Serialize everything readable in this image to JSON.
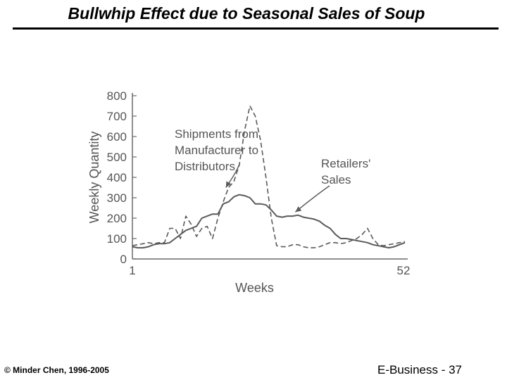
{
  "slide": {
    "title": "Bullwhip Effect due to Seasonal Sales of Soup",
    "footer_left": "© Minder Chen, 1996-2005",
    "footer_right": "E-Business - 37"
  },
  "chart_data": {
    "type": "line",
    "xlabel": "Weeks",
    "ylabel": "Weekly Quantity",
    "ylim": [
      0,
      800
    ],
    "yticks": [
      0,
      100,
      200,
      300,
      400,
      500,
      600,
      700,
      800
    ],
    "xlim": [
      1,
      52
    ],
    "xtick_labels": [
      "1",
      "52"
    ],
    "grid": false,
    "colors": {
      "line": "#5a5a5a",
      "axis": "#6a6a6a",
      "text": "#555555"
    },
    "x": [
      1,
      2,
      3,
      4,
      5,
      6,
      7,
      8,
      9,
      10,
      11,
      12,
      13,
      14,
      15,
      16,
      17,
      18,
      19,
      20,
      21,
      22,
      23,
      24,
      25,
      26,
      27,
      28,
      29,
      30,
      31,
      32,
      33,
      34,
      35,
      36,
      37,
      38,
      39,
      40,
      41,
      42,
      43,
      44,
      45,
      46,
      47,
      48,
      49,
      50,
      51,
      52
    ],
    "series": [
      {
        "name": "Shipments from Manufacturer to Distributors",
        "style": "dashed",
        "values": [
          65,
          70,
          75,
          80,
          75,
          80,
          80,
          150,
          150,
          100,
          210,
          170,
          110,
          150,
          160,
          100,
          200,
          280,
          350,
          380,
          460,
          630,
          750,
          700,
          580,
          400,
          200,
          65,
          60,
          60,
          70,
          70,
          60,
          55,
          55,
          60,
          70,
          80,
          80,
          75,
          80,
          90,
          100,
          120,
          150,
          100,
          70,
          65,
          70,
          75,
          80,
          85
        ]
      },
      {
        "name": "Retailers' Sales",
        "style": "solid",
        "values": [
          60,
          55,
          55,
          60,
          70,
          75,
          75,
          80,
          100,
          120,
          140,
          150,
          160,
          200,
          210,
          220,
          220,
          270,
          280,
          305,
          315,
          310,
          300,
          270,
          270,
          265,
          240,
          210,
          205,
          210,
          210,
          215,
          205,
          200,
          195,
          185,
          165,
          150,
          120,
          100,
          100,
          95,
          90,
          85,
          80,
          70,
          65,
          60,
          55,
          60,
          70,
          80
        ]
      }
    ],
    "annotations": [
      {
        "text": "Shipments from Manufacturer to Distributors",
        "lines": [
          "Shipments from",
          "Manufacturer to",
          "Distributors"
        ]
      },
      {
        "text": "Retailers' Sales",
        "lines": [
          "Retailers'",
          "Sales"
        ]
      }
    ]
  }
}
